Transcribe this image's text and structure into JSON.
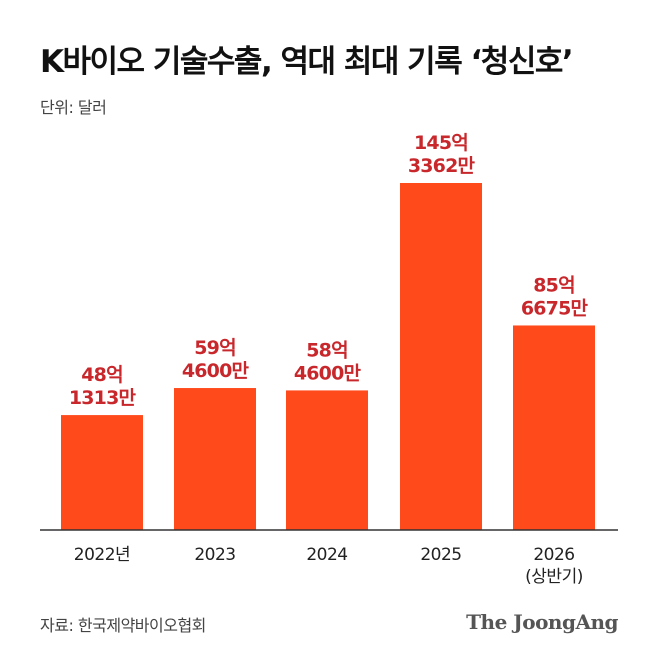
{
  "header": {
    "title": "K바이오 기술수출, 역대 최대 기록 ‘청신호’",
    "unit": "단위: 달러"
  },
  "footer": {
    "source": "자료: 한국제약바이오협회",
    "brand": "The JoongAng"
  },
  "colors": {
    "bar": "#ff4a1c",
    "value_label": "#c8272b",
    "axis": "#333333"
  },
  "chart_data": {
    "type": "bar",
    "title": "K바이오 기술수출, 역대 최대 기록 ‘청신호’",
    "unit_label": "단위: 달러",
    "categories": [
      "2022년",
      "2023",
      "2024",
      "2025",
      "2026\n(상반기)"
    ],
    "values": [
      4813130000,
      5946000000,
      5846000000,
      14533620000,
      8566750000
    ],
    "data_labels": [
      "48억\n1313만",
      "59억\n4600만",
      "58억\n4600만",
      "145억\n3362만",
      "85억\n6675만"
    ],
    "ylim": [
      0,
      17000000000
    ],
    "grid": false,
    "legend": "none"
  }
}
